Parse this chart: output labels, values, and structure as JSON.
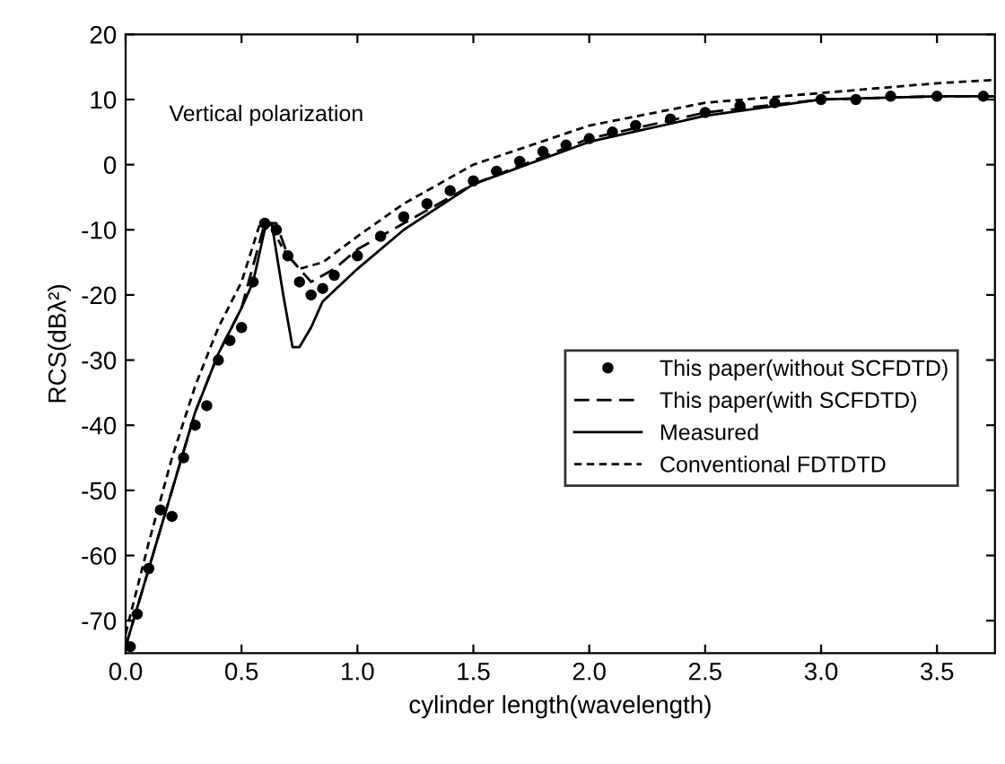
{
  "chart_data": {
    "type": "line",
    "xlabel": "cylinder length(wavelength)",
    "ylabel": "RCS(dBλ²)",
    "annotations": [
      "Vertical polarization"
    ],
    "xlim": [
      0,
      3.75
    ],
    "xticks": [
      {
        "value": 0,
        "label": "0.0"
      },
      0.5,
      {
        "value": 1,
        "label": "1.0"
      },
      1.5,
      {
        "value": 2,
        "label": "2.0"
      },
      2.5,
      {
        "value": 3,
        "label": "3.0"
      },
      3.5
    ],
    "ylim": [
      -75,
      20
    ],
    "yticks": [
      -70,
      -60,
      -50,
      -40,
      -30,
      -20,
      -10,
      0,
      10,
      20
    ],
    "grid": false,
    "legend": "right",
    "series": [
      {
        "name": "This paper(without SCFDTD)",
        "type": "scatter",
        "marker": "circle",
        "color": "#000000",
        "x": [
          0.02,
          0.05,
          0.1,
          0.15,
          0.2,
          0.25,
          0.3,
          0.35,
          0.4,
          0.45,
          0.5,
          0.55,
          0.6,
          0.65,
          0.7,
          0.75,
          0.8,
          0.85,
          0.9,
          1.0,
          1.1,
          1.2,
          1.3,
          1.4,
          1.5,
          1.6,
          1.7,
          1.8,
          1.9,
          2.0,
          2.1,
          2.2,
          2.35,
          2.5,
          2.65,
          2.8,
          3.0,
          3.15,
          3.3,
          3.5,
          3.7
        ],
        "values": [
          -74,
          -69,
          -62,
          -53,
          -54,
          -45,
          -40,
          -37,
          -30,
          -27,
          -25,
          -18,
          -9,
          -10,
          -14,
          -18,
          -20,
          -19,
          -17,
          -14,
          -11,
          -8,
          -6,
          -4,
          -2.5,
          -1,
          0.5,
          2,
          3,
          4,
          5,
          6,
          7,
          8,
          9,
          9.5,
          10,
          10,
          10.5,
          10.5,
          10.5
        ]
      },
      {
        "name": "This paper(with SCFDTD)",
        "line_style": "dashed",
        "color": "#000000",
        "x": [
          0,
          0.1,
          0.2,
          0.3,
          0.4,
          0.5,
          0.6,
          0.65,
          0.7,
          0.8,
          0.9,
          1.0,
          1.5,
          2.0,
          2.5,
          3.0,
          3.5,
          3.75
        ],
        "values": [
          -74,
          -62,
          -50,
          -38,
          -29,
          -22,
          -9,
          -9,
          -14,
          -18,
          -16,
          -13,
          -3,
          4,
          8,
          10,
          10.5,
          10.5
        ]
      },
      {
        "name": "Measured",
        "line_style": "solid",
        "color": "#000000",
        "x": [
          0,
          0.1,
          0.2,
          0.3,
          0.4,
          0.5,
          0.55,
          0.6,
          0.63,
          0.68,
          0.72,
          0.75,
          0.8,
          0.85,
          1.0,
          1.2,
          1.5,
          2.0,
          2.5,
          3.0,
          3.5,
          3.75
        ],
        "values": [
          -74,
          -62,
          -50,
          -38,
          -29,
          -22,
          -18,
          -10,
          -9,
          -20,
          -28,
          -28,
          -25,
          -21,
          -16,
          -10,
          -3,
          3.5,
          7.5,
          10,
          10.5,
          10.5
        ]
      },
      {
        "name": "Conventional FDTDTD",
        "line_style": "dotted",
        "color": "#000000",
        "x": [
          0,
          0.1,
          0.2,
          0.3,
          0.4,
          0.5,
          0.58,
          0.62,
          0.68,
          0.75,
          0.85,
          1.0,
          1.2,
          1.5,
          2.0,
          2.5,
          3.0,
          3.5,
          3.75
        ],
        "values": [
          -72,
          -58,
          -45,
          -34,
          -25,
          -18,
          -9,
          -9,
          -13,
          -16,
          -15,
          -11,
          -6,
          0,
          6,
          9.5,
          11,
          12.5,
          13
        ]
      }
    ]
  }
}
